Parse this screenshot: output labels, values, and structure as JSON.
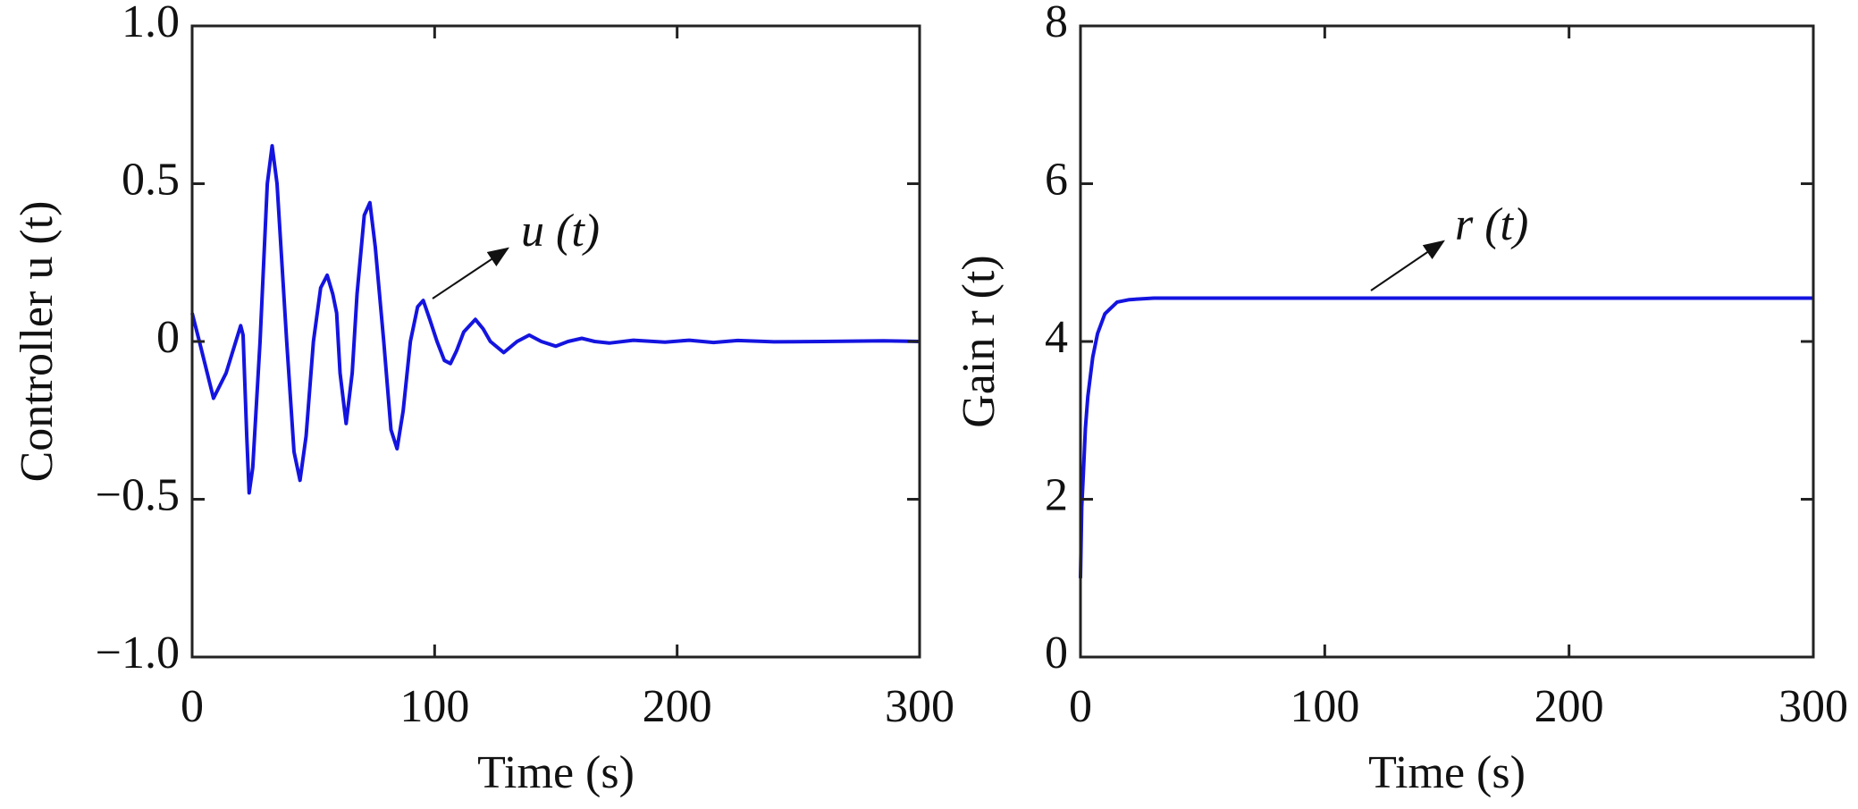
{
  "chart_data": [
    {
      "type": "line",
      "xlabel": "Time (s)",
      "ylabel": "Controller u (t)",
      "annotation": "u (t)",
      "xlim": [
        0,
        300
      ],
      "xticks": [
        0,
        100,
        200,
        300
      ],
      "ylim": [
        -1,
        1
      ],
      "yticks": [
        {
          "value": -1,
          "label": "−1.0"
        },
        {
          "value": -0.5,
          "label": "−0.5"
        },
        0,
        0.5,
        {
          "value": 1,
          "label": "1.0"
        }
      ],
      "series": [
        {
          "color": "#1414e0",
          "x": [
            0,
            3,
            8.8,
            14,
            20,
            21,
            22.5,
            23.5,
            25,
            28,
            31,
            33,
            35,
            39,
            42,
            44.5,
            47,
            50,
            53,
            55.7,
            58,
            59.6,
            61,
            63.5,
            66,
            68,
            71,
            73.3,
            75.5,
            79,
            82,
            84.5,
            87,
            90,
            93,
            95.3,
            98,
            101,
            104,
            106.5,
            109,
            112,
            116.8,
            120,
            123,
            128.5,
            134,
            139,
            144,
            150,
            155,
            160.7,
            166,
            172,
            182,
            195,
            205,
            215,
            225,
            240,
            260,
            285,
            300
          ],
          "values": [
            0.09,
            0,
            -0.18,
            -0.1,
            0.05,
            0.02,
            -0.3,
            -0.48,
            -0.4,
            0,
            0.5,
            0.62,
            0.5,
            0,
            -0.35,
            -0.44,
            -0.3,
            0,
            0.17,
            0.21,
            0.15,
            0.09,
            -0.1,
            -0.26,
            -0.1,
            0.15,
            0.4,
            0.44,
            0.3,
            0,
            -0.28,
            -0.34,
            -0.22,
            0,
            0.11,
            0.13,
            0.07,
            0,
            -0.06,
            -0.07,
            -0.03,
            0.03,
            0.07,
            0.04,
            0,
            -0.035,
            0,
            0.02,
            0,
            -0.015,
            0,
            0.01,
            0,
            -0.005,
            0.004,
            -0.002,
            0.004,
            -0.003,
            0.003,
            -0.001,
            0,
            0.002,
            0
          ]
        }
      ]
    },
    {
      "type": "line",
      "xlabel": "Time (s)",
      "ylabel": "Gain r (t)",
      "annotation": "r (t)",
      "xlim": [
        0,
        300
      ],
      "xticks": [
        0,
        100,
        200,
        300
      ],
      "ylim": [
        0,
        8
      ],
      "yticks": [
        0,
        2,
        4,
        6,
        8
      ],
      "series": [
        {
          "color": "#1414e0",
          "x": [
            0,
            0.5,
            1,
            2,
            3,
            5,
            7,
            10,
            15,
            20,
            30,
            50,
            300
          ],
          "values": [
            1.0,
            1.9,
            2.2,
            2.9,
            3.3,
            3.8,
            4.1,
            4.35,
            4.5,
            4.53,
            4.55,
            4.55,
            4.55
          ]
        }
      ]
    }
  ]
}
